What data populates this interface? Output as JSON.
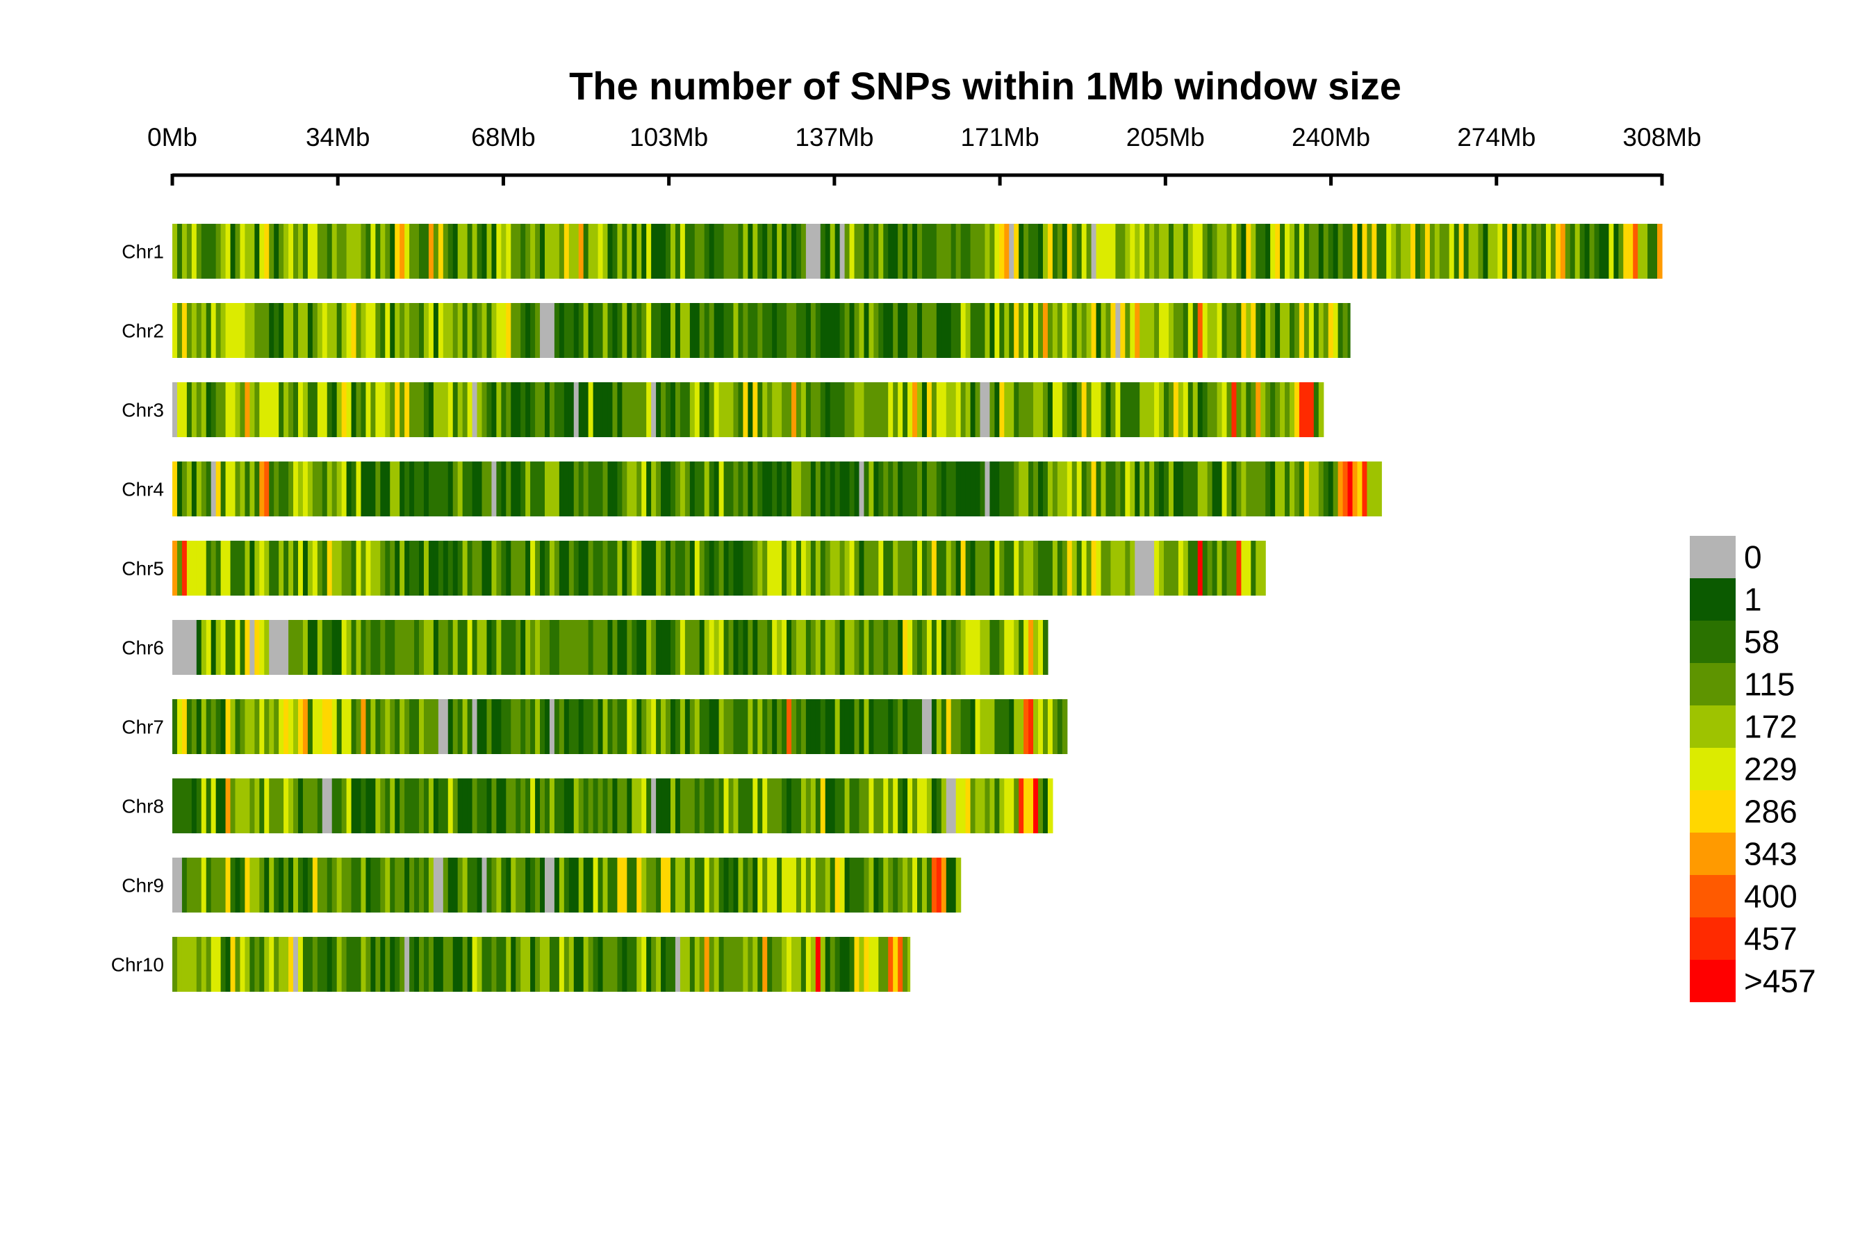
{
  "chart_data": {
    "type": "heatmap",
    "title": "The number of SNPs within 1Mb window size",
    "xlabel": "",
    "ylabel": "",
    "x_unit": "Mb",
    "x_range": [
      0,
      308
    ],
    "x_ticks": [
      "0Mb",
      "34Mb",
      "68Mb",
      "103Mb",
      "137Mb",
      "171Mb",
      "205Mb",
      "240Mb",
      "274Mb",
      "308Mb"
    ],
    "window_size_mb": 1,
    "legend": {
      "position": "right",
      "labels": [
        "0",
        "1",
        "58",
        "115",
        "172",
        "229",
        "286",
        "343",
        "400",
        "457",
        ">457"
      ],
      "colors": [
        "#b4b4b4",
        "#0b5a00",
        "#2a7200",
        "#5e9400",
        "#9ec300",
        "#dceb00",
        "#ffd700",
        "#ff9a00",
        "#ff5a00",
        "#ff2a00",
        "#ff0000"
      ]
    },
    "chromosomes": [
      {
        "name": "Chr1",
        "length_mb": 308,
        "zero_windows": [
          [
            131,
            134
          ],
          [
            138,
            139
          ],
          [
            173,
            174
          ],
          [
            190,
            191
          ]
        ],
        "low_density_regions": [
          [
            100,
            131
          ],
          [
            134,
            170
          ]
        ],
        "high_density_spots": [
          [
            302,
            303
          ]
        ]
      },
      {
        "name": "Chr2",
        "length_mb": 243.5,
        "zero_windows": [
          [
            76,
            79
          ],
          [
            195,
            196
          ]
        ],
        "low_density_regions": [
          [
            78,
            170
          ]
        ],
        "high_density_spots": [
          [
            190,
            191
          ],
          [
            212,
            213
          ]
        ]
      },
      {
        "name": "Chr3",
        "length_mb": 238,
        "zero_windows": [
          [
            0,
            1
          ],
          [
            62,
            63
          ],
          [
            83,
            84
          ],
          [
            99,
            100
          ],
          [
            167,
            169
          ]
        ],
        "low_density_regions": [
          [
            62,
            108
          ]
        ],
        "high_density_spots": [
          [
            219,
            220
          ],
          [
            232,
            236
          ]
        ]
      },
      {
        "name": "Chr4",
        "length_mb": 250,
        "zero_windows": [
          [
            8,
            9
          ],
          [
            66,
            67
          ],
          [
            142,
            143
          ],
          [
            168,
            169
          ]
        ],
        "low_density_regions": [
          [
            40,
            180
          ]
        ],
        "high_density_spots": [
          [
            9,
            10
          ],
          [
            18,
            20
          ],
          [
            241,
            247
          ]
        ]
      },
      {
        "name": "Chr5",
        "length_mb": 226,
        "zero_windows": [
          [
            199,
            203
          ]
        ],
        "low_density_regions": [
          [
            44,
            120
          ]
        ],
        "high_density_spots": [
          [
            2,
            3
          ],
          [
            212,
            213
          ],
          [
            220,
            221
          ]
        ]
      },
      {
        "name": "Chr6",
        "length_mb": 181,
        "zero_windows": [
          [
            0,
            5
          ],
          [
            16,
            17
          ],
          [
            20,
            24
          ]
        ],
        "low_density_regions": [
          [
            25,
            108
          ]
        ],
        "high_density_spots": [
          [
            151,
            152
          ],
          [
            177,
            178
          ]
        ]
      },
      {
        "name": "Chr7",
        "length_mb": 185,
        "zero_windows": [
          [
            55,
            57
          ],
          [
            62,
            63
          ],
          [
            78,
            79
          ],
          [
            155,
            157
          ]
        ],
        "low_density_regions": [
          [
            45,
            155
          ]
        ],
        "high_density_spots": [
          [
            127,
            128
          ],
          [
            176,
            178
          ]
        ]
      },
      {
        "name": "Chr8",
        "length_mb": 182,
        "zero_windows": [
          [
            31,
            33
          ],
          [
            99,
            100
          ],
          [
            160,
            162
          ]
        ],
        "low_density_regions": [
          [
            33,
            110
          ]
        ],
        "high_density_spots": [
          [
            175,
            179
          ]
        ]
      },
      {
        "name": "Chr9",
        "length_mb": 163,
        "zero_windows": [
          [
            0,
            2
          ],
          [
            54,
            56
          ],
          [
            64,
            65
          ],
          [
            77,
            79
          ]
        ],
        "low_density_regions": [
          [
            30,
            90
          ]
        ],
        "high_density_spots": [
          [
            157,
            160
          ]
        ]
      },
      {
        "name": "Chr10",
        "length_mb": 152.5,
        "zero_windows": [
          [
            25,
            26
          ],
          [
            48,
            49
          ],
          [
            104,
            105
          ]
        ],
        "low_density_regions": [
          [
            28,
            104
          ]
        ],
        "high_density_spots": [
          [
            24,
            25
          ],
          [
            133,
            134
          ],
          [
            148,
            151
          ]
        ]
      }
    ]
  }
}
